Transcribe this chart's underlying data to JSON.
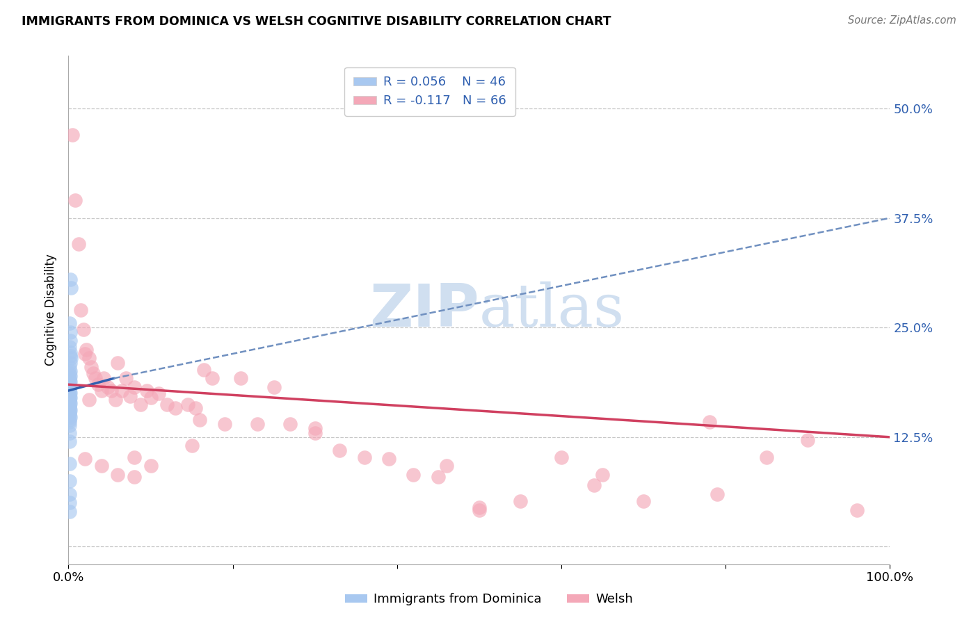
{
  "title": "IMMIGRANTS FROM DOMINICA VS WELSH COGNITIVE DISABILITY CORRELATION CHART",
  "source": "Source: ZipAtlas.com",
  "ylabel": "Cognitive Disability",
  "xlim": [
    0.0,
    1.0
  ],
  "ylim": [
    -0.02,
    0.56
  ],
  "x_ticks": [
    0.0,
    0.2,
    0.4,
    0.6,
    0.8,
    1.0
  ],
  "x_tick_labels": [
    "0.0%",
    "",
    "",
    "",
    "",
    "100.0%"
  ],
  "y_ticks": [
    0.0,
    0.125,
    0.25,
    0.375,
    0.5
  ],
  "y_tick_labels": [
    "",
    "12.5%",
    "25.0%",
    "37.5%",
    "50.0%"
  ],
  "legend_R_blue": "R = 0.056",
  "legend_N_blue": "N = 46",
  "legend_R_pink": "R = -0.117",
  "legend_N_pink": "N = 66",
  "legend_label_blue": "Immigrants from Dominica",
  "legend_label_pink": "Welsh",
  "blue_color": "#a8c8f0",
  "pink_color": "#f4a8b8",
  "blue_line_color": "#3060b0",
  "blue_dash_color": "#7090c0",
  "pink_line_color": "#d04060",
  "watermark_color": "#d0dff0",
  "blue_scatter_x": [
    0.002,
    0.003,
    0.001,
    0.002,
    0.002,
    0.001,
    0.002,
    0.002,
    0.003,
    0.002,
    0.001,
    0.002,
    0.001,
    0.002,
    0.001,
    0.001,
    0.002,
    0.001,
    0.002,
    0.001,
    0.001,
    0.002,
    0.001,
    0.001,
    0.002,
    0.001,
    0.001,
    0.002,
    0.001,
    0.001,
    0.001,
    0.002,
    0.001,
    0.001,
    0.001,
    0.002,
    0.001,
    0.001,
    0.001,
    0.001,
    0.001,
    0.001,
    0.001,
    0.001,
    0.001,
    0.001
  ],
  "blue_scatter_y": [
    0.305,
    0.295,
    0.255,
    0.245,
    0.235,
    0.228,
    0.222,
    0.218,
    0.215,
    0.21,
    0.205,
    0.2,
    0.198,
    0.195,
    0.192,
    0.19,
    0.188,
    0.185,
    0.183,
    0.18,
    0.178,
    0.176,
    0.174,
    0.172,
    0.17,
    0.168,
    0.166,
    0.164,
    0.162,
    0.16,
    0.158,
    0.156,
    0.154,
    0.152,
    0.15,
    0.148,
    0.145,
    0.142,
    0.138,
    0.13,
    0.12,
    0.095,
    0.075,
    0.06,
    0.05,
    0.04
  ],
  "pink_scatter_x": [
    0.005,
    0.008,
    0.012,
    0.015,
    0.018,
    0.02,
    0.022,
    0.025,
    0.028,
    0.03,
    0.033,
    0.036,
    0.04,
    0.043,
    0.048,
    0.052,
    0.057,
    0.06,
    0.065,
    0.07,
    0.075,
    0.08,
    0.088,
    0.095,
    0.1,
    0.11,
    0.12,
    0.13,
    0.145,
    0.155,
    0.165,
    0.175,
    0.19,
    0.21,
    0.23,
    0.25,
    0.27,
    0.3,
    0.33,
    0.36,
    0.39,
    0.42,
    0.46,
    0.5,
    0.55,
    0.6,
    0.65,
    0.7,
    0.78,
    0.85,
    0.9,
    0.02,
    0.04,
    0.06,
    0.08,
    0.1,
    0.16,
    0.3,
    0.45,
    0.5,
    0.64,
    0.79,
    0.96,
    0.15,
    0.08,
    0.025
  ],
  "pink_scatter_y": [
    0.47,
    0.395,
    0.345,
    0.27,
    0.248,
    0.22,
    0.225,
    0.215,
    0.205,
    0.198,
    0.192,
    0.185,
    0.178,
    0.192,
    0.182,
    0.178,
    0.168,
    0.21,
    0.178,
    0.192,
    0.172,
    0.182,
    0.162,
    0.178,
    0.17,
    0.175,
    0.162,
    0.158,
    0.162,
    0.158,
    0.202,
    0.192,
    0.14,
    0.192,
    0.14,
    0.182,
    0.14,
    0.13,
    0.11,
    0.102,
    0.1,
    0.082,
    0.092,
    0.042,
    0.052,
    0.102,
    0.082,
    0.052,
    0.142,
    0.102,
    0.122,
    0.1,
    0.092,
    0.082,
    0.102,
    0.092,
    0.145,
    0.135,
    0.08,
    0.045,
    0.07,
    0.06,
    0.042,
    0.115,
    0.08,
    0.168
  ],
  "blue_line_x0": 0.0,
  "blue_line_x_solid_end": 0.055,
  "blue_line_x_dash_end": 1.0,
  "blue_line_y_at_0": 0.178,
  "blue_line_y_at_solid_end": 0.192,
  "blue_line_y_at_dash_end": 0.375,
  "pink_line_x0": 0.0,
  "pink_line_x1": 1.0,
  "pink_line_y0": 0.185,
  "pink_line_y1": 0.125
}
